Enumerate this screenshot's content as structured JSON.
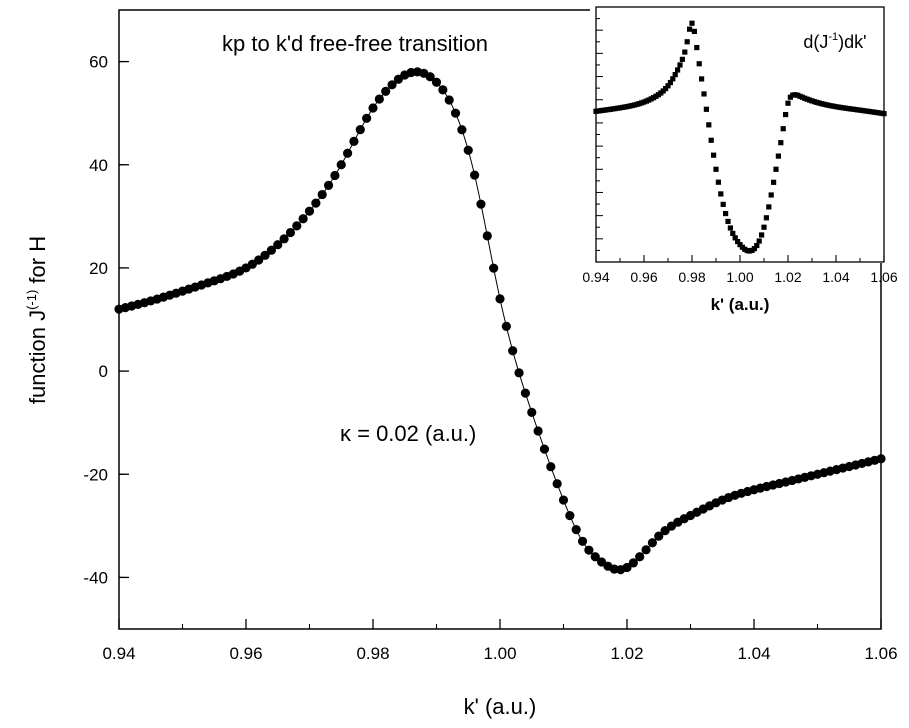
{
  "chart_data": [
    {
      "type": "scatter",
      "title": "kp to k'd free-free transition",
      "annotation": "κ = 0.02 (a.u.)",
      "xlabel": "k' (a.u.)",
      "ylabel": "function J(-1) for H",
      "ylabel_parts": {
        "pre": "function J",
        "sup": "(-1)",
        "post": " for H"
      },
      "xlim": [
        0.94,
        1.06
      ],
      "ylim": [
        -50,
        70
      ],
      "x_ticks": [
        0.94,
        0.96,
        0.98,
        1.0,
        1.02,
        1.04,
        1.06
      ],
      "x_tick_labels": [
        "0.94",
        "0.96",
        "0.98",
        "1.00",
        "1.02",
        "1.04",
        "1.06"
      ],
      "y_ticks": [
        -40,
        -20,
        0,
        20,
        40,
        60
      ],
      "y_tick_labels": [
        "-40",
        "-20",
        "0",
        "20",
        "40",
        "60"
      ],
      "series": [
        {
          "marker": "circle",
          "line": true,
          "x": [
            0.94,
            0.945,
            0.95,
            0.955,
            0.96,
            0.965,
            0.97,
            0.975,
            0.98,
            0.983,
            0.985,
            0.987,
            0.99,
            0.993,
            0.996,
            1.0,
            1.005,
            1.01,
            1.013,
            1.016,
            1.019,
            1.022,
            1.025,
            1.03,
            1.035,
            1.04,
            1.045,
            1.05,
            1.055,
            1.06
          ],
          "y": [
            12,
            13.6,
            15.5,
            17.5,
            20,
            24.5,
            31,
            40,
            51,
            55.5,
            57.4,
            58,
            56,
            50,
            38,
            14,
            -8,
            -25,
            -33,
            -37,
            -38.5,
            -36,
            -32,
            -28,
            -25,
            -23,
            -21.5,
            -20,
            -18.5,
            -17
          ]
        }
      ]
    },
    {
      "type": "scatter",
      "annotation": "d(J-1)dk'",
      "annotation_parts": {
        "pre": "d(J",
        "sup": "-1",
        "post": ")dk'"
      },
      "xlabel": "k' (a.u.)",
      "xlim": [
        0.94,
        1.06
      ],
      "x_ticks": [
        0.94,
        0.96,
        0.98,
        1.0,
        1.02,
        1.04,
        1.06
      ],
      "x_tick_labels": [
        "0.94",
        "0.96",
        "0.98",
        "1.00",
        "1.02",
        "1.04",
        "1.06"
      ],
      "ylim": [
        -1.2,
        1.0
      ],
      "series": [
        {
          "marker": "square",
          "x": [
            0.94,
            0.95,
            0.96,
            0.965,
            0.97,
            0.975,
            0.978,
            0.98,
            0.982,
            0.985,
            0.99,
            0.995,
            1.0,
            1.005,
            1.01,
            1.015,
            1.018,
            1.02,
            1.022,
            1.025,
            1.03,
            1.04,
            1.05,
            1.06
          ],
          "y": [
            0.1,
            0.13,
            0.18,
            0.23,
            0.32,
            0.5,
            0.7,
            0.86,
            0.65,
            0.25,
            -0.4,
            -0.85,
            -1.05,
            -1.1,
            -0.9,
            -0.4,
            -0.05,
            0.17,
            0.24,
            0.23,
            0.19,
            0.14,
            0.11,
            0.08
          ]
        }
      ]
    }
  ]
}
